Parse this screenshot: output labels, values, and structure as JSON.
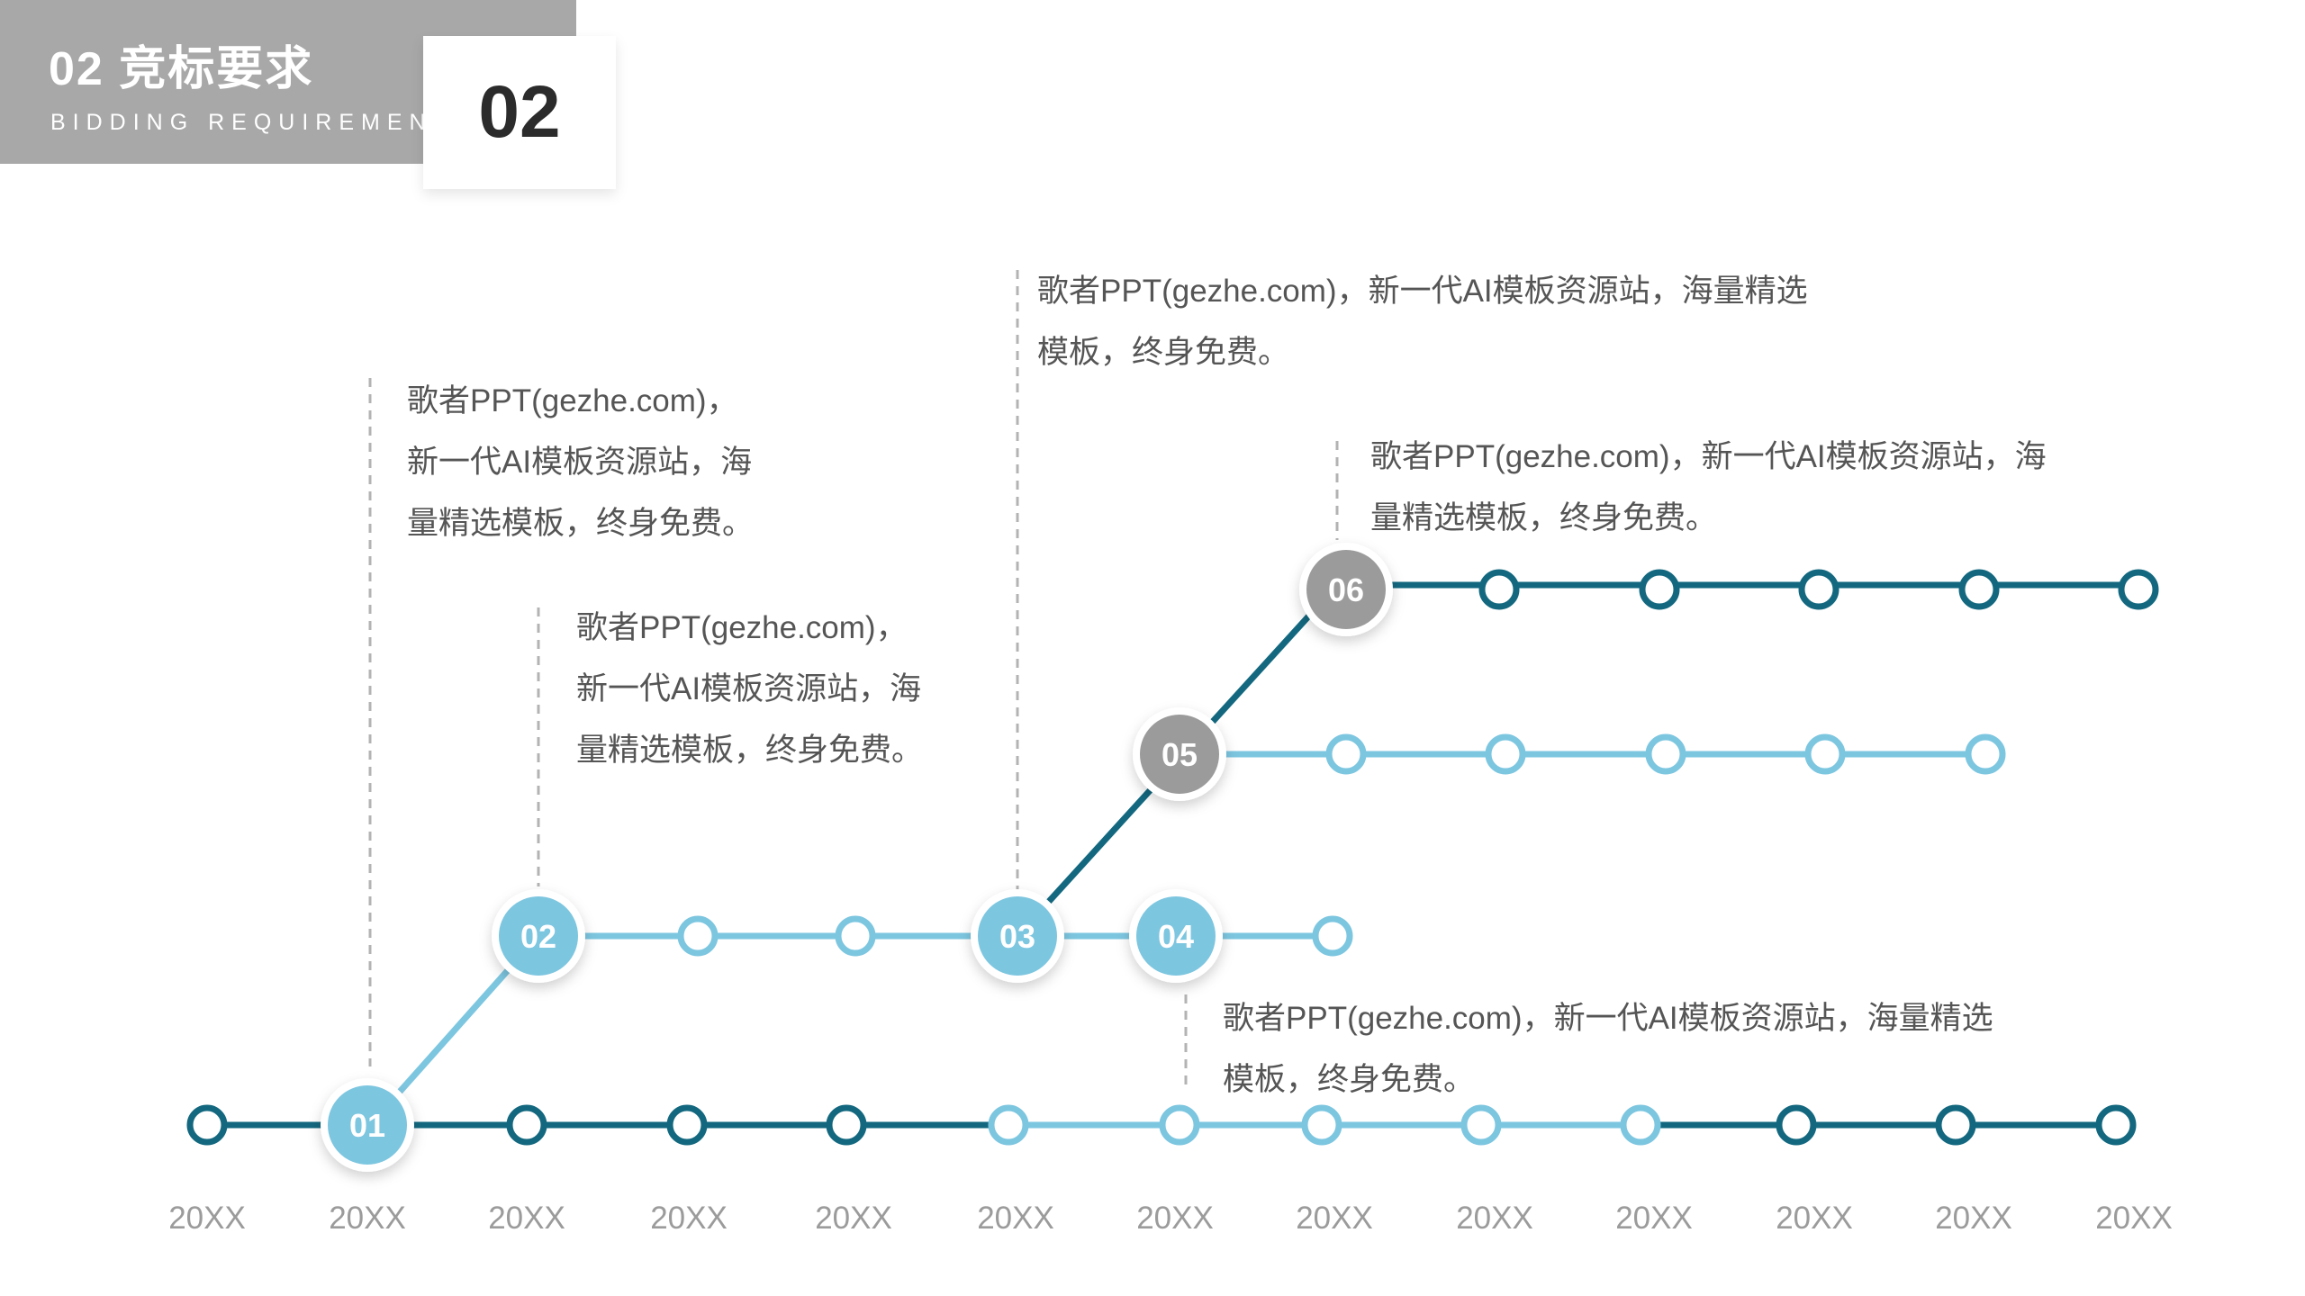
{
  "header": {
    "title": "02 竞标要求",
    "subtitle": "BIDDING REQUIREMENTS",
    "section_number": "02"
  },
  "colors": {
    "header_gray": "#a8a8a8",
    "dark_teal": "#13687f",
    "light_blue": "#7dc6e0",
    "milestone_gray": "#9b9b9b",
    "year_gray": "#9b9b9b",
    "note_text": "#555555"
  },
  "timeline": {
    "years": [
      "20XX",
      "20XX",
      "20XX",
      "20XX",
      "20XX",
      "20XX",
      "20XX",
      "20XX",
      "20XX",
      "20XX",
      "20XX",
      "20XX",
      "20XX"
    ]
  },
  "milestones": [
    {
      "label": "01",
      "style": "light"
    },
    {
      "label": "02",
      "style": "light"
    },
    {
      "label": "03",
      "style": "light"
    },
    {
      "label": "04",
      "style": "light"
    },
    {
      "label": "05",
      "style": "gray"
    },
    {
      "label": "06",
      "style": "gray"
    }
  ],
  "notes": [
    {
      "text": "歌者PPT(gezhe.com)，新一代AI模板资源站，海量精选模板，终身免费。"
    },
    {
      "text": "歌者PPT(gezhe.com)，新一代AI模板资源站，海量精选模板，终身免费。"
    },
    {
      "text": "歌者PPT(gezhe.com)，新一代AI模板资源站，海量精选模板，终身免费。"
    },
    {
      "text": "歌者PPT(gezhe.com)，新一代AI模板资源站，海量精选模板，终身免费。"
    },
    {
      "text": "歌者PPT(gezhe.com)，新一代AI模板资源站，海量精选模板，终身免费。"
    }
  ]
}
